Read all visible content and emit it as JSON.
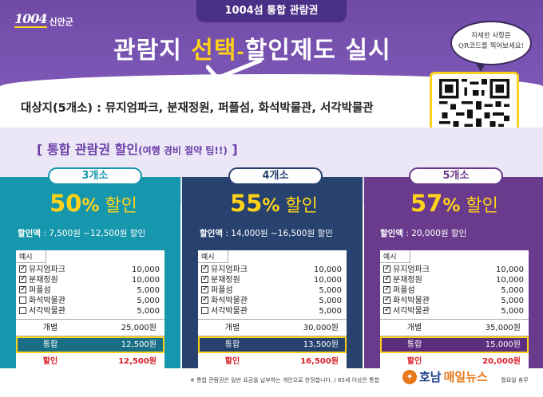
{
  "logo": {
    "num": "1004",
    "name": "신안군"
  },
  "ticket_tab": "1004섬 통합 관람권",
  "headline": {
    "part1": "관람지 ",
    "highlight": "선택",
    "dash": "-",
    "part2": "할인제도 실시"
  },
  "speech_bubble": {
    "line1": "자세한 사항은",
    "line2": "QR코드를 찍어보세요!"
  },
  "target": "대상지(5개소) : 뮤지엄파크, 분재정원, 퍼플섬, 화석박물관, 서각박물관",
  "tip": {
    "main": "[ 통합 관람권 할인",
    "paren": "(여행 경비 절약 팁!!)",
    "end": " ]"
  },
  "columns": [
    {
      "pill": "3개소",
      "pct": "50",
      "pct_sym": "%",
      "pct_word": " 할인",
      "amount_label": "할인액",
      "amount_value": " : 7,500원 ~12,500원 할인",
      "example": "예시",
      "items": [
        {
          "name": "뮤지엄파크",
          "price": "10,000",
          "checked": true
        },
        {
          "name": "분재정원",
          "price": "10,000",
          "checked": true
        },
        {
          "name": "퍼플섬",
          "price": "5,000",
          "checked": true
        },
        {
          "name": "화석박물관",
          "price": "5,000",
          "checked": false
        },
        {
          "name": "서각박물관",
          "price": "5,000",
          "checked": false
        }
      ],
      "individual_label": "개별",
      "individual_value": "25,000원",
      "combined_label": "통합",
      "combined_value": "12,500원",
      "discount_label": "할인",
      "discount_value": "12,500원"
    },
    {
      "pill": "4개소",
      "pct": "55",
      "pct_sym": "%",
      "pct_word": " 할인",
      "amount_label": "할인액",
      "amount_value": " : 14,000원 ~16,500원 할인",
      "example": "예시",
      "items": [
        {
          "name": "뮤지엄파크",
          "price": "10,000",
          "checked": true
        },
        {
          "name": "분재정원",
          "price": "10,000",
          "checked": true
        },
        {
          "name": "퍼플섬",
          "price": "5,000",
          "checked": true
        },
        {
          "name": "화석박물관",
          "price": "5,000",
          "checked": true
        },
        {
          "name": "서각박물관",
          "price": "5,000",
          "checked": false
        }
      ],
      "individual_label": "개별",
      "individual_value": "30,000원",
      "combined_label": "통합",
      "combined_value": "13,500원",
      "discount_label": "할인",
      "discount_value": "16,500원"
    },
    {
      "pill": "5개소",
      "pct": "57",
      "pct_sym": "%",
      "pct_word": " 할인",
      "amount_label": "할인액",
      "amount_value": " : 20,000원 할인",
      "example": "예시",
      "items": [
        {
          "name": "뮤지엄파크",
          "price": "10,000",
          "checked": true
        },
        {
          "name": "분재정원",
          "price": "10,000",
          "checked": true
        },
        {
          "name": "퍼플섬",
          "price": "5,000",
          "checked": true
        },
        {
          "name": "화석박물관",
          "price": "5,000",
          "checked": true
        },
        {
          "name": "서각박물관",
          "price": "5,000",
          "checked": true
        }
      ],
      "individual_label": "개별",
      "individual_value": "35,000원",
      "combined_label": "통합",
      "combined_value": "15,000원",
      "discount_label": "할인",
      "discount_value": "20,000원"
    }
  ],
  "footer_note": "※ 통합 관람권은 일반 요금을 납부하는 개인으로 한정합니다. / 65세 이상은 통합",
  "footer_note_end": "월요일 휴무",
  "press": {
    "ho": "호남",
    "name": "매일뉴스"
  },
  "colors": {
    "purple": "#6f4ba6",
    "teal": "#1797ad",
    "navy": "#27426f",
    "violet": "#6a3b8c",
    "yellow": "#ffd21a",
    "red": "#d81f26"
  }
}
